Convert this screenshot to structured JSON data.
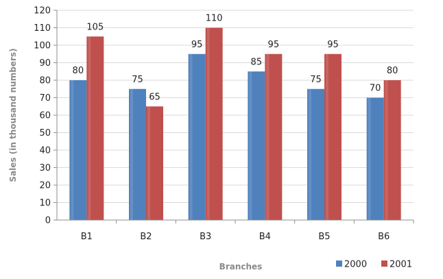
{
  "chart_data": {
    "type": "bar",
    "title": "",
    "xlabel": "Branches",
    "ylabel": "Sales (in thousand numbers)",
    "categories": [
      "B1",
      "B2",
      "B3",
      "B4",
      "B5",
      "B6"
    ],
    "series": [
      {
        "name": "2000",
        "color": "#4f81bd",
        "values": [
          80,
          75,
          95,
          85,
          75,
          70
        ]
      },
      {
        "name": "2001",
        "color": "#c0504d",
        "values": [
          105,
          65,
          110,
          95,
          95,
          80
        ]
      }
    ],
    "ylim": [
      0,
      120
    ],
    "yticks": [
      0,
      10,
      20,
      30,
      40,
      50,
      60,
      70,
      80,
      90,
      100,
      110,
      120
    ],
    "grid": true,
    "legend_position": "bottom-right",
    "data_labels": true
  }
}
